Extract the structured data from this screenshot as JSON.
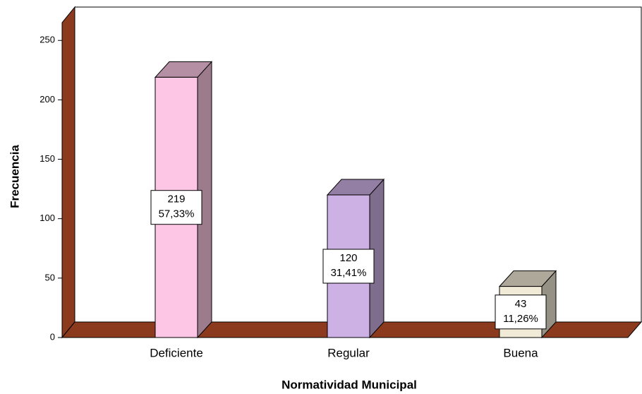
{
  "chart_data": {
    "type": "bar3d",
    "x_label": "Normatividad Municipal",
    "y_label": "Frecuencia",
    "categories": [
      "Deficiente",
      "Regular",
      "Buena"
    ],
    "values": [
      219,
      120,
      43
    ],
    "percent_labels": [
      "57,33%",
      "31,41%",
      "11,26%"
    ],
    "colors": [
      "#fcc6e4",
      "#cdb0e4",
      "#f0ead6"
    ],
    "ylim": [
      0,
      265
    ],
    "yticks": [
      0,
      50,
      100,
      150,
      200,
      250
    ],
    "grid": false
  }
}
